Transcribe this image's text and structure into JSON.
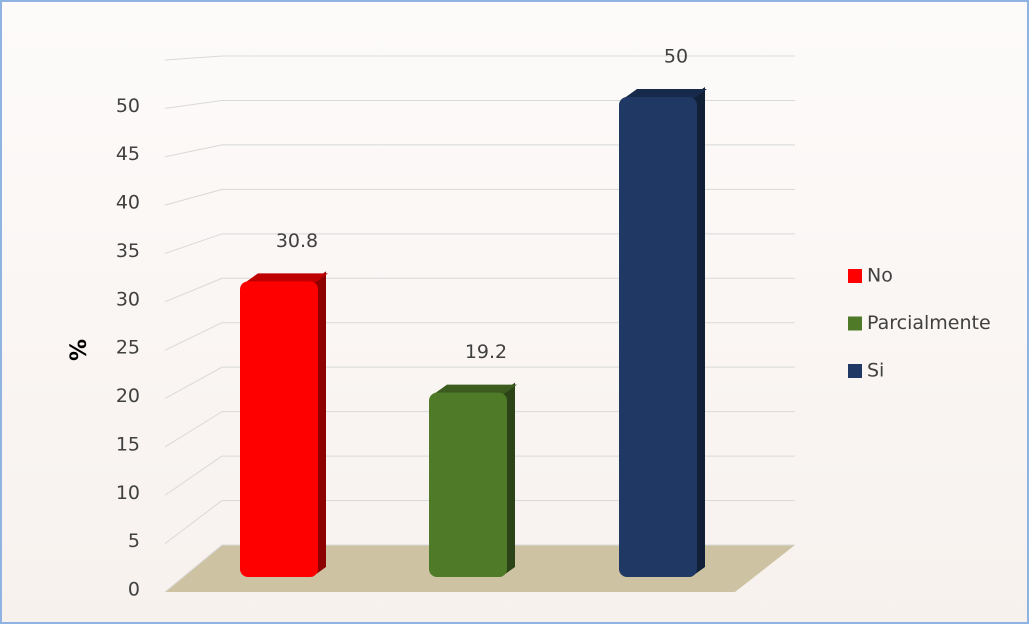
{
  "chart_data": {
    "type": "bar3d",
    "y_label": "%",
    "series": [
      {
        "name": "No",
        "color": "#ff0000",
        "values": [
          30.8
        ]
      },
      {
        "name": "Parcialmente",
        "color": "#4f7a28",
        "values": [
          19.2
        ]
      },
      {
        "name": "Si",
        "color": "#1f3864",
        "values": [
          50
        ]
      }
    ],
    "ylim": [
      0,
      55
    ],
    "yticks": [
      0,
      5,
      10,
      15,
      20,
      25,
      30,
      35,
      40,
      45,
      50
    ],
    "grid": true,
    "legend": "right"
  }
}
